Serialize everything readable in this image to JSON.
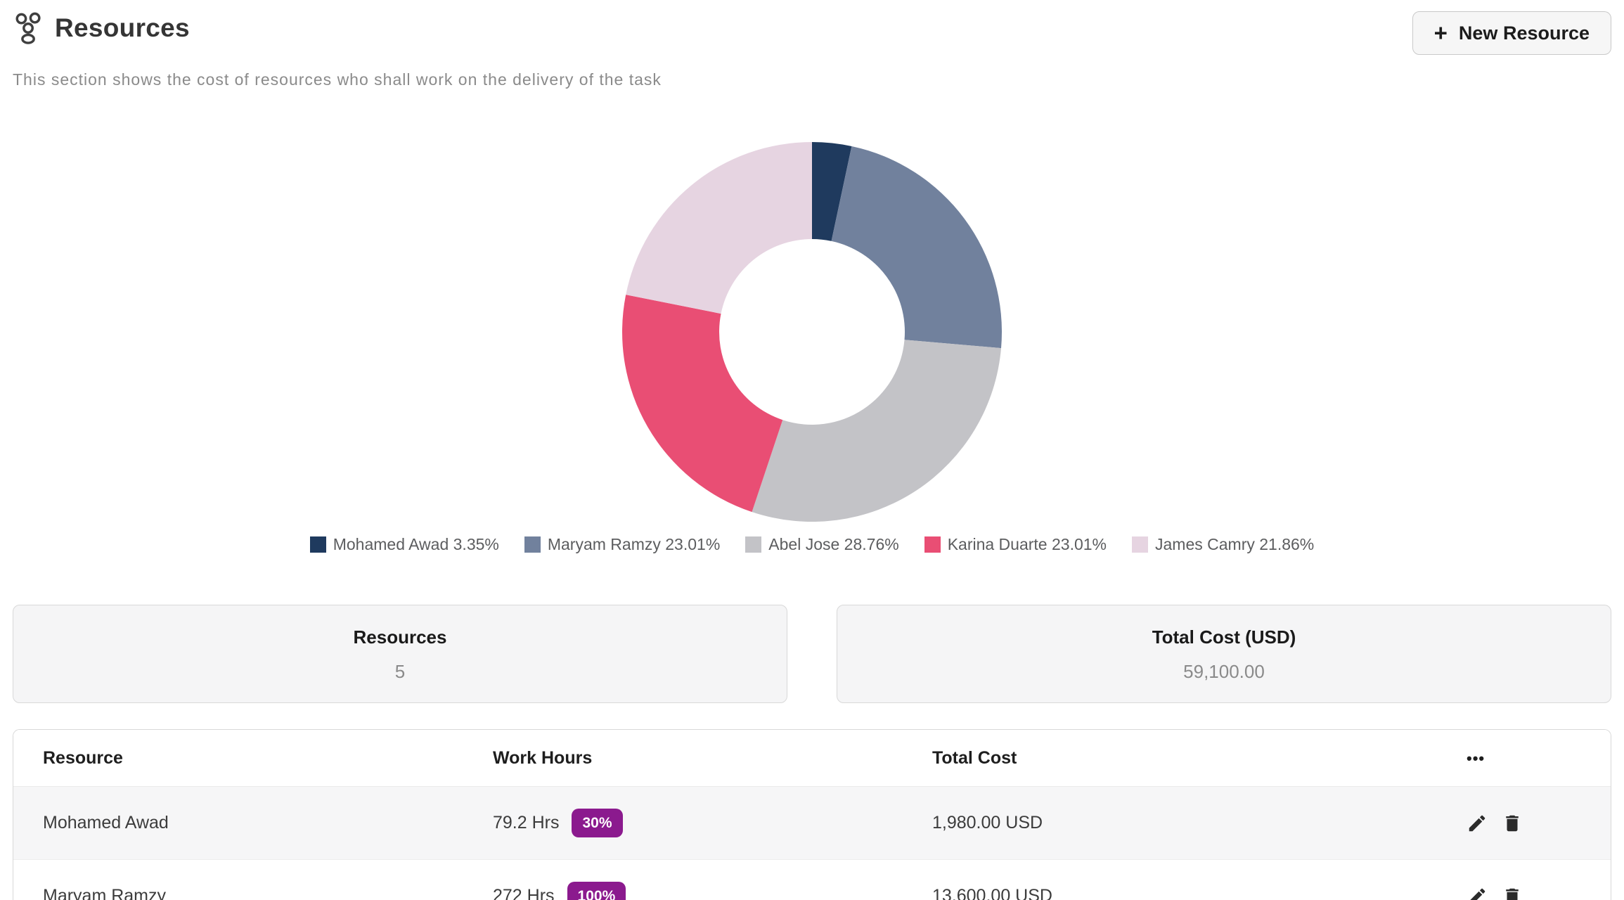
{
  "header": {
    "title": "Resources",
    "subtitle": "This section shows the cost of resources who shall work on the delivery of the task",
    "new_resource_button": {
      "plus": "+",
      "label": "New Resource"
    }
  },
  "chart_data": {
    "type": "pie",
    "variant": "donut",
    "legend_position": "bottom",
    "unit": "%",
    "start_angle_deg": 0,
    "slices": [
      {
        "label": "Mohamed Awad",
        "value": 3.35,
        "color": "#1f3a5e"
      },
      {
        "label": "Maryam Ramzy",
        "value": 23.01,
        "color": "#71819d"
      },
      {
        "label": "Abel Jose",
        "value": 28.76,
        "color": "#c3c3c7"
      },
      {
        "label": "Karina Duarte",
        "value": 23.01,
        "color": "#e94e74"
      },
      {
        "label": "James Camry",
        "value": 21.86,
        "color": "#e6d4e1"
      }
    ]
  },
  "summary_cards": [
    {
      "title": "Resources",
      "value": "5"
    },
    {
      "title": "Total Cost (USD)",
      "value": "59,100.00"
    }
  ],
  "table": {
    "columns": [
      "Resource",
      "Work Hours",
      "Total Cost"
    ],
    "actions_menu": "•••",
    "badge_color": "#8b1a8e",
    "rows": [
      {
        "resource": "Mohamed Awad",
        "work_hours": "79.2 Hrs",
        "allocation": "30%",
        "total_cost": "1,980.00 USD"
      },
      {
        "resource": "Maryam Ramzy",
        "work_hours": "272 Hrs",
        "allocation": "100%",
        "total_cost": "13,600.00 USD"
      }
    ]
  }
}
